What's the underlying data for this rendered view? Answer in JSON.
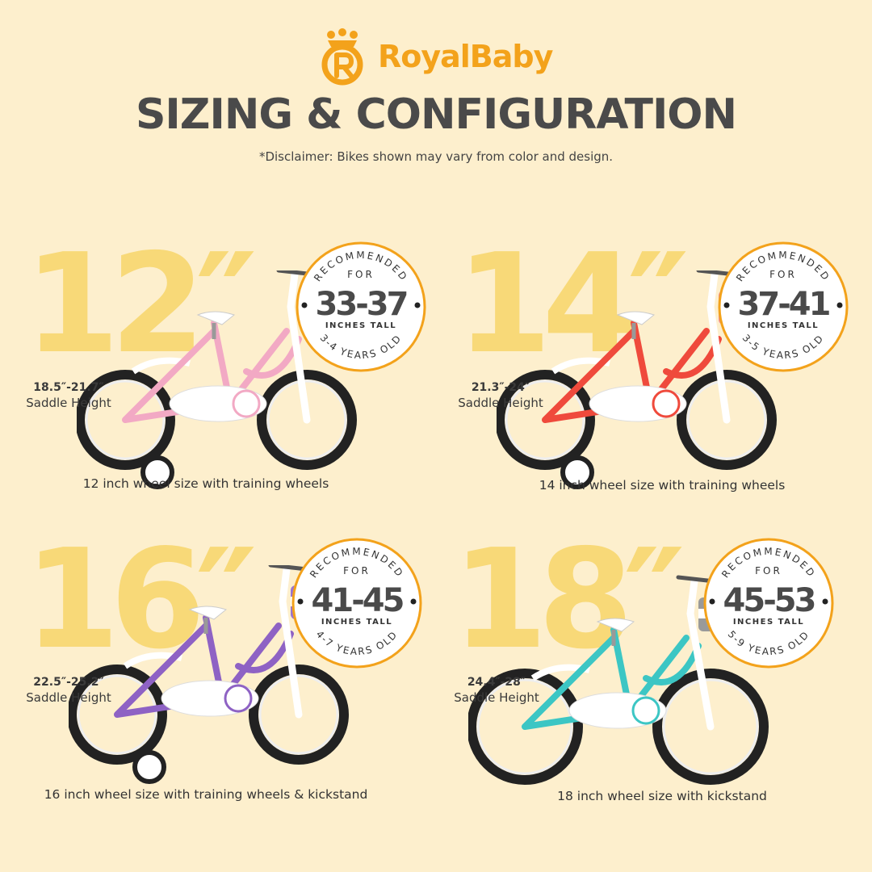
{
  "brand": {
    "name": "RoyalBaby",
    "color": "#f3a21b"
  },
  "header": {
    "title": "SIZING & CONFIGURATION",
    "disclaimer": "*Disclaimer: Bikes shown may vary from color and design."
  },
  "badge_common": {
    "recommended": "RECOMMENDED",
    "for": "FOR",
    "inches_tall": "INCHES TALL"
  },
  "bikes": [
    {
      "size": "12″",
      "saddle_range": "18.5″-21.7″",
      "saddle_label": "Saddle Height",
      "height_range": "33-37",
      "age": "3-4 YEARS OLD",
      "caption": "12 inch wheel size with training wheels",
      "color": "#f2a9c4",
      "training_wheels": true,
      "basket": "#f48ca5"
    },
    {
      "size": "14″",
      "saddle_range": "21.3″-24″",
      "saddle_label": "Saddle Height",
      "height_range": "37-41",
      "age": "3-5 YEARS OLD",
      "caption": "14 inch wheel size with training wheels",
      "color": "#ef4a3c",
      "training_wheels": true,
      "basket": "#f48ca5"
    },
    {
      "size": "16″",
      "saddle_range": "22.5″-25.2″",
      "saddle_label": "Saddle Height",
      "height_range": "41-45",
      "age": "4-7 YEARS OLD",
      "caption": "16 inch wheel size with training wheels & kickstand",
      "color": "#8e62c4",
      "training_wheels": true,
      "basket": "#9b74d0"
    },
    {
      "size": "18″",
      "saddle_range": "24.4″-28″",
      "saddle_label": "Saddle Height",
      "height_range": "45-53",
      "age": "5-9 YEARS OLD",
      "caption": "18 inch wheel size with kickstand",
      "color": "#3cc6c4",
      "training_wheels": false,
      "basket": "#9a9a9a"
    }
  ]
}
